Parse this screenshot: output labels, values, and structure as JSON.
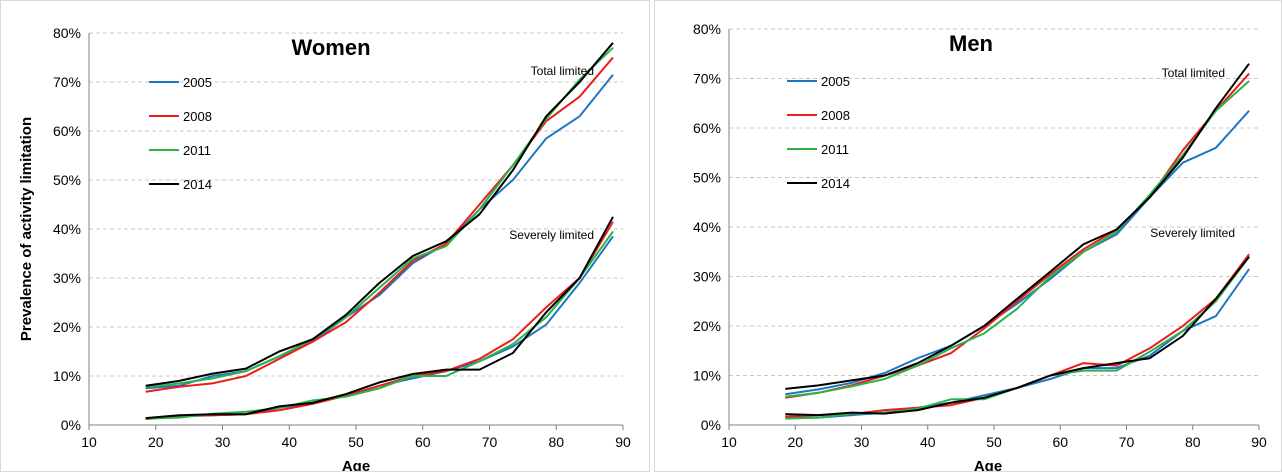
{
  "chart_data": [
    {
      "type": "line",
      "title": "Women",
      "xlabel": "Age",
      "ylabel": "Prevalence of activity limitation",
      "xlim": [
        10,
        90
      ],
      "ylim": [
        0,
        0.8
      ],
      "x_ticks": [
        "10",
        "20",
        "30",
        "40",
        "50",
        "60",
        "70",
        "80",
        "90"
      ],
      "y_ticks": [
        "0%",
        "10%",
        "20%",
        "30%",
        "40%",
        "50%",
        "60%",
        "70%",
        "80%"
      ],
      "grid": true,
      "legend_placement": "top-left",
      "annotations": [
        "Total limited",
        "Severely limited"
      ],
      "x": [
        18.5,
        23.5,
        28.5,
        33.5,
        38.5,
        43.5,
        48.5,
        53.5,
        58.5,
        63.5,
        68.5,
        73.5,
        78.5,
        83.5,
        88.5
      ],
      "series": [
        {
          "name": "2005",
          "color": "#1f77c4",
          "group": "total",
          "values": [
            0.075,
            0.08,
            0.1,
            0.11,
            0.14,
            0.17,
            0.22,
            0.265,
            0.33,
            0.37,
            0.44,
            0.5,
            0.585,
            0.63,
            0.715
          ]
        },
        {
          "name": "2008",
          "color": "#ee1c1c",
          "group": "total",
          "values": [
            0.068,
            0.078,
            0.085,
            0.1,
            0.135,
            0.17,
            0.21,
            0.27,
            0.335,
            0.37,
            0.45,
            0.53,
            0.62,
            0.67,
            0.75
          ]
        },
        {
          "name": "2011",
          "color": "#2bb34a",
          "group": "total",
          "values": [
            0.077,
            0.085,
            0.095,
            0.11,
            0.14,
            0.175,
            0.22,
            0.28,
            0.34,
            0.365,
            0.44,
            0.53,
            0.625,
            0.705,
            0.77
          ]
        },
        {
          "name": "2014",
          "color": "#000000",
          "group": "total",
          "values": [
            0.08,
            0.09,
            0.105,
            0.115,
            0.15,
            0.175,
            0.225,
            0.29,
            0.345,
            0.375,
            0.43,
            0.52,
            0.63,
            0.7,
            0.78
          ]
        },
        {
          "name": "2005",
          "color": "#1f77c4",
          "group": "severe",
          "values": [
            0.013,
            0.018,
            0.02,
            0.022,
            0.035,
            0.045,
            0.06,
            0.08,
            0.095,
            0.11,
            0.13,
            0.16,
            0.205,
            0.29,
            0.385
          ]
        },
        {
          "name": "2008",
          "color": "#ee1c1c",
          "group": "severe",
          "values": [
            0.012,
            0.018,
            0.02,
            0.022,
            0.03,
            0.043,
            0.06,
            0.08,
            0.1,
            0.11,
            0.135,
            0.175,
            0.24,
            0.3,
            0.415
          ]
        },
        {
          "name": "2011",
          "color": "#2bb34a",
          "group": "severe",
          "values": [
            0.013,
            0.015,
            0.023,
            0.027,
            0.035,
            0.05,
            0.058,
            0.075,
            0.1,
            0.1,
            0.13,
            0.165,
            0.22,
            0.3,
            0.395
          ]
        },
        {
          "name": "2014",
          "color": "#000000",
          "group": "severe",
          "values": [
            0.014,
            0.02,
            0.022,
            0.022,
            0.038,
            0.045,
            0.063,
            0.087,
            0.104,
            0.113,
            0.113,
            0.147,
            0.23,
            0.3,
            0.425
          ]
        }
      ]
    },
    {
      "type": "line",
      "title": "Men",
      "xlabel": "Age",
      "ylabel": "",
      "xlim": [
        10,
        90
      ],
      "ylim": [
        0,
        0.8
      ],
      "x_ticks": [
        "10",
        "20",
        "30",
        "40",
        "50",
        "60",
        "70",
        "80",
        "90"
      ],
      "y_ticks": [
        "0%",
        "10%",
        "20%",
        "30%",
        "40%",
        "50%",
        "60%",
        "70%",
        "80%"
      ],
      "grid": true,
      "legend_placement": "top-left",
      "annotations": [
        "Total limited",
        "Severely limited"
      ],
      "x": [
        18.5,
        23.5,
        28.5,
        33.5,
        38.5,
        43.5,
        48.5,
        53.5,
        58.5,
        63.5,
        68.5,
        73.5,
        78.5,
        83.5,
        88.5
      ],
      "series": [
        {
          "name": "2005",
          "color": "#1f77c4",
          "group": "total",
          "values": [
            0.062,
            0.072,
            0.085,
            0.105,
            0.135,
            0.16,
            0.2,
            0.245,
            0.295,
            0.35,
            0.385,
            0.46,
            0.53,
            0.56,
            0.635
          ]
        },
        {
          "name": "2008",
          "color": "#ee1c1c",
          "group": "total",
          "values": [
            0.055,
            0.065,
            0.08,
            0.1,
            0.12,
            0.145,
            0.195,
            0.25,
            0.305,
            0.355,
            0.395,
            0.46,
            0.555,
            0.635,
            0.71
          ]
        },
        {
          "name": "2011",
          "color": "#2bb34a",
          "group": "total",
          "values": [
            0.057,
            0.065,
            0.078,
            0.093,
            0.12,
            0.155,
            0.185,
            0.235,
            0.3,
            0.35,
            0.39,
            0.465,
            0.545,
            0.635,
            0.695
          ]
        },
        {
          "name": "2014",
          "color": "#000000",
          "group": "total",
          "values": [
            0.073,
            0.08,
            0.09,
            0.1,
            0.125,
            0.16,
            0.2,
            0.255,
            0.31,
            0.365,
            0.395,
            0.46,
            0.54,
            0.64,
            0.73
          ]
        },
        {
          "name": "2005",
          "color": "#1f77c4",
          "group": "severe",
          "values": [
            0.015,
            0.015,
            0.02,
            0.025,
            0.035,
            0.045,
            0.06,
            0.075,
            0.093,
            0.115,
            0.115,
            0.14,
            0.19,
            0.22,
            0.315
          ]
        },
        {
          "name": "2008",
          "color": "#ee1c1c",
          "group": "severe",
          "values": [
            0.017,
            0.02,
            0.022,
            0.03,
            0.035,
            0.04,
            0.055,
            0.075,
            0.1,
            0.125,
            0.12,
            0.155,
            0.2,
            0.255,
            0.345
          ]
        },
        {
          "name": "2011",
          "color": "#2bb34a",
          "group": "severe",
          "values": [
            0.013,
            0.015,
            0.023,
            0.025,
            0.033,
            0.052,
            0.052,
            0.075,
            0.1,
            0.11,
            0.11,
            0.148,
            0.19,
            0.25,
            0.34
          ]
        },
        {
          "name": "2014",
          "color": "#000000",
          "group": "severe",
          "values": [
            0.022,
            0.02,
            0.025,
            0.023,
            0.03,
            0.045,
            0.055,
            0.075,
            0.1,
            0.115,
            0.125,
            0.135,
            0.18,
            0.255,
            0.34
          ]
        }
      ]
    }
  ]
}
